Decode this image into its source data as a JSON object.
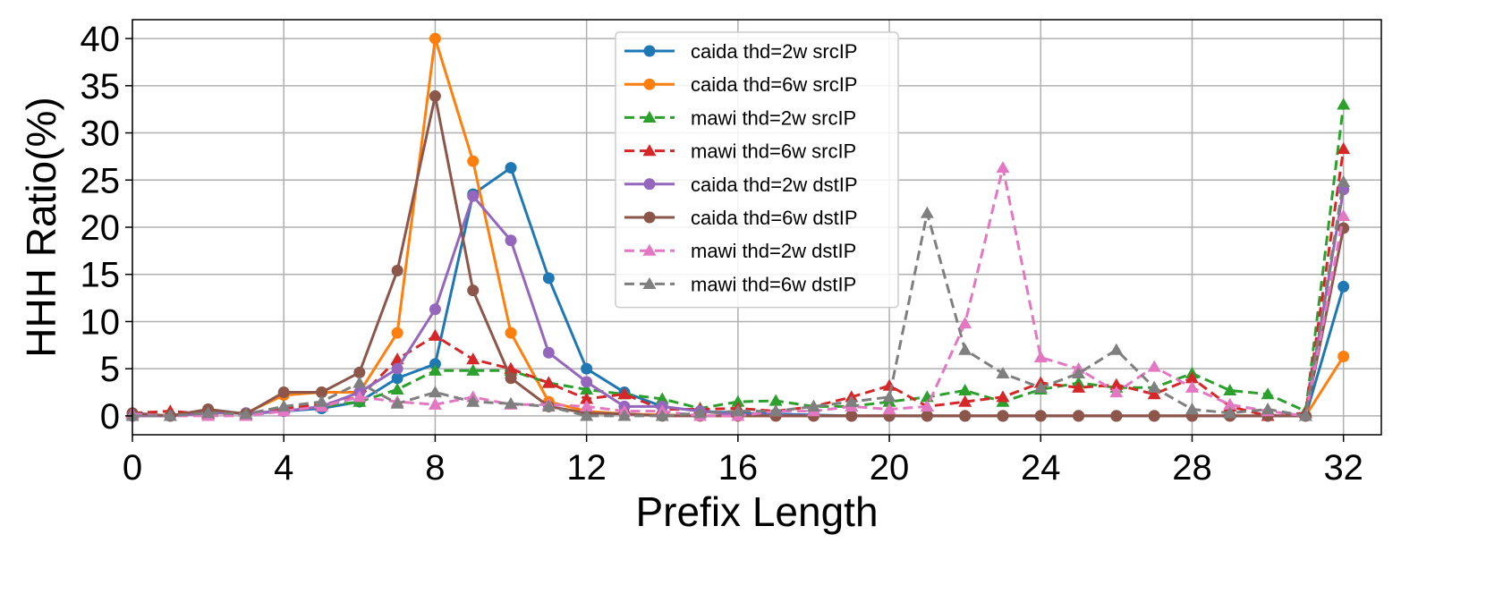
{
  "chart_data": {
    "type": "line",
    "xlabel": "Prefix Length",
    "ylabel": "HHH Ratio(%)",
    "xlim": [
      0,
      33
    ],
    "ylim": [
      -2,
      42
    ],
    "xticks": [
      0,
      4,
      8,
      12,
      16,
      20,
      24,
      28,
      32
    ],
    "yticks": [
      0,
      5,
      10,
      15,
      20,
      25,
      30,
      35,
      40
    ],
    "grid": true,
    "legend_position": "top-center",
    "x": [
      0,
      1,
      2,
      3,
      4,
      5,
      6,
      7,
      8,
      9,
      10,
      11,
      12,
      13,
      14,
      15,
      16,
      17,
      18,
      19,
      20,
      21,
      22,
      23,
      24,
      25,
      26,
      27,
      28,
      29,
      30,
      31,
      32
    ],
    "series": [
      {
        "name": "caida thd=2w srcIP",
        "color": "#1f77b4",
        "marker": "circle",
        "dashed": false,
        "values": [
          0,
          0,
          0.5,
          0.2,
          0.5,
          0.8,
          1.5,
          4,
          5.5,
          23.5,
          26.3,
          14.6,
          5,
          2.5,
          1,
          0.5,
          0.3,
          0.2,
          0.1,
          0,
          0,
          0,
          0,
          0,
          0,
          0,
          0,
          0,
          0,
          0,
          0,
          0,
          13.7
        ]
      },
      {
        "name": "caida thd=6w srcIP",
        "color": "#ff7f0e",
        "marker": "circle",
        "dashed": false,
        "values": [
          0,
          0,
          0.3,
          0.3,
          2.2,
          2.5,
          2.5,
          8.8,
          40,
          27,
          8.8,
          1.5,
          0.5,
          0.2,
          0.1,
          0,
          0,
          0,
          0,
          0,
          0,
          0,
          0,
          0,
          0,
          0,
          0,
          0,
          0,
          0,
          0,
          0,
          6.3
        ]
      },
      {
        "name": "mawi thd=2w srcIP",
        "color": "#2ca02c",
        "marker": "triangle",
        "dashed": true,
        "values": [
          0.3,
          0,
          0.2,
          0.1,
          1,
          1,
          1.5,
          2.8,
          4.8,
          4.8,
          4.8,
          3.5,
          2.8,
          2.3,
          1.8,
          0.8,
          1.5,
          1.6,
          1,
          1,
          1.5,
          2,
          2.7,
          1.5,
          2.8,
          3.5,
          3,
          3,
          4.5,
          2.7,
          2.3,
          0.5,
          33
        ]
      },
      {
        "name": "mawi thd=6w srcIP",
        "color": "#d62728",
        "marker": "triangle",
        "dashed": true,
        "values": [
          0.3,
          0.5,
          0.2,
          0.2,
          0.8,
          1.2,
          2,
          6,
          8.5,
          6,
          5,
          3.5,
          1.8,
          2.3,
          0.7,
          0.7,
          0.8,
          0.5,
          1,
          2,
          3.2,
          1,
          1.5,
          2,
          3.5,
          3,
          3.3,
          2.3,
          4,
          1,
          0,
          0.3,
          28.3
        ]
      },
      {
        "name": "caida thd=2w dstIP",
        "color": "#9467bd",
        "marker": "circle",
        "dashed": false,
        "values": [
          0,
          0,
          0.3,
          0.3,
          0.5,
          1,
          2.5,
          5,
          11.3,
          23.3,
          18.6,
          6.7,
          3.6,
          1,
          1,
          0.5,
          0.1,
          0.1,
          0,
          0,
          0,
          0,
          0,
          0,
          0,
          0,
          0,
          0,
          0,
          0,
          0,
          0,
          24
        ]
      },
      {
        "name": "caida thd=6w dstIP",
        "color": "#8c564b",
        "marker": "circle",
        "dashed": false,
        "values": [
          0.3,
          0,
          0.7,
          0.2,
          2.5,
          2.5,
          4.6,
          15.4,
          33.9,
          13.3,
          4,
          1,
          0.3,
          0.2,
          0,
          0,
          0,
          0,
          0,
          0,
          0,
          0,
          0,
          0,
          0,
          0,
          0,
          0,
          0,
          0,
          0,
          0,
          19.9
        ]
      },
      {
        "name": "mawi thd=2w dstIP",
        "color": "#e377c2",
        "marker": "triangle",
        "dashed": true,
        "values": [
          0.2,
          0,
          0,
          0,
          0.5,
          1,
          2,
          1.5,
          1.2,
          2,
          1.2,
          1.2,
          1,
          0.5,
          0.5,
          0,
          0,
          0.5,
          0.5,
          1,
          0.7,
          1,
          9.8,
          26.3,
          6.2,
          5,
          2.5,
          5.2,
          3,
          1.2,
          0.5,
          0,
          21.2
        ]
      },
      {
        "name": "mawi thd=6w dstIP",
        "color": "#7f7f7f",
        "marker": "triangle",
        "dashed": true,
        "values": [
          0,
          0,
          0.3,
          0.2,
          1,
          1.5,
          3.5,
          1.3,
          2.5,
          1.5,
          1.3,
          1,
          0,
          0,
          0,
          0.3,
          0.5,
          0.5,
          1,
          1.5,
          2,
          21.5,
          7,
          4.5,
          3,
          4.5,
          7,
          3,
          0.7,
          0.3,
          0.7,
          0,
          24.8
        ]
      }
    ]
  }
}
